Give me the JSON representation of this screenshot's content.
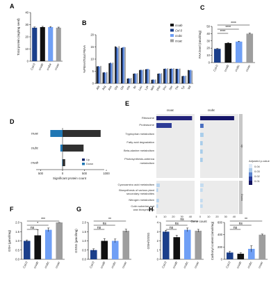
{
  "colors": {
    "col0": "#1b3f8b",
    "cruab": "#111111",
    "cruba": "#6f9ff5",
    "cruac": "#9e9e9e",
    "up": "#1a2a6c",
    "down": "#1f77b4",
    "dark": "#303030"
  },
  "panels": {
    "A": {
      "letter": "A",
      "ylabel": "Total protein (mg/mg seed)",
      "ylim": [
        0,
        40
      ],
      "yticks": [
        "0",
        "10",
        "20",
        "30",
        "40"
      ],
      "categories": [
        "Col-0",
        "cruab",
        "cruba",
        "cruac"
      ],
      "values": [
        27.5,
        28,
        28,
        27.5
      ],
      "errors": [
        0.6,
        0.6,
        0.5,
        0.5
      ]
    },
    "B": {
      "letter": "B",
      "ylabel": "%PBAA/Total PBAA",
      "ylim": [
        0,
        20
      ],
      "yticks": [
        "0",
        "5",
        "10",
        "15",
        "20"
      ],
      "categories": [
        "Ala",
        "Arg",
        "Asx",
        "Gly",
        "Glx",
        "His",
        "Ile",
        "Leu",
        "Lys",
        "Met",
        "Phe",
        "Pro",
        "Ser",
        "Thr",
        "Tyr",
        "Val"
      ],
      "series": [
        {
          "name": "cruab",
          "values": [
            7.0,
            4.5,
            8.3,
            15.2,
            14.6,
            2.0,
            4.0,
            5.5,
            5.8,
            1.5,
            4.0,
            6.0,
            6.0,
            6.0,
            3.0,
            5.5
          ]
        },
        {
          "name": "Col-0",
          "values": [
            7.1,
            4.6,
            8.5,
            15.0,
            14.8,
            2.1,
            4.1,
            5.6,
            5.9,
            1.6,
            4.1,
            6.1,
            6.1,
            6.0,
            3.1,
            5.4
          ]
        },
        {
          "name": "crubc",
          "values": [
            6.9,
            4.4,
            8.2,
            14.5,
            15.0,
            2.0,
            3.9,
            5.4,
            6.0,
            1.5,
            4.0,
            5.9,
            6.0,
            5.9,
            3.0,
            5.6
          ]
        },
        {
          "name": "cruac",
          "values": [
            7.2,
            4.7,
            8.6,
            15.3,
            14.9,
            2.2,
            4.2,
            5.7,
            5.7,
            1.6,
            4.2,
            6.2,
            6.2,
            6.1,
            3.2,
            5.3
          ]
        }
      ]
    },
    "C": {
      "letter": "C",
      "ylabel": "FAA level (nmol/mg)",
      "ylim": [
        0,
        50
      ],
      "yticks": [
        "0",
        "10",
        "20",
        "30",
        "40",
        "50"
      ],
      "categories": [
        "Col-0",
        "cruab",
        "crubc",
        "cruac"
      ],
      "values": [
        19,
        27,
        29,
        40
      ],
      "errors": [
        0.5,
        0.7,
        0.6,
        0.8
      ],
      "sig": [
        "****",
        "****",
        "****"
      ]
    },
    "D": {
      "letter": "D",
      "xlabel": "Significant protein count",
      "xticks": [
        "500",
        "0",
        "500",
        "1000"
      ],
      "categories": [
        "cruac",
        "crubc",
        "cruab"
      ],
      "up": [
        870,
        480,
        60
      ],
      "down": [
        280,
        50,
        10
      ],
      "legend": [
        "Up",
        "Down"
      ]
    },
    "E": {
      "letter": "E",
      "titles": [
        "cruac",
        "crubc"
      ],
      "side_labels": [
        "Up",
        "Down"
      ],
      "xlabel": "Gene count",
      "xticks": [
        "0",
        "10",
        "20",
        "30",
        "40"
      ],
      "terms_up": [
        "Ribosome",
        "Proteasome",
        "Tryptophan metabolism",
        "Fatty acid degradation",
        "Beta-alanine metabolism",
        "Photosynthesis-antenna",
        "metabolism"
      ],
      "terms_down": [
        "Cyanoamino acid metabolism",
        "Biosynthesis of various plant",
        "secondary metabolites",
        "Nitrogen metabolism",
        "Cutin suberine and",
        "wax biosynthesis"
      ],
      "legend_title": "Adjusted p-value",
      "legend_ticks": [
        "0.04",
        "0.03",
        "0.02",
        "0.01"
      ],
      "cruac_counts": [
        42,
        18,
        0,
        0,
        0,
        0,
        4,
        2,
        3,
        2
      ],
      "crubc_counts": [
        40,
        4,
        4,
        3,
        3,
        3,
        4,
        3,
        3,
        3
      ]
    },
    "F": {
      "letter": "F",
      "ylabel": "GSH (µmol/mg)",
      "ylim": [
        0,
        2.0
      ],
      "yticks": [
        "0.0",
        "0.5",
        "1.0",
        "1.5",
        "2.0"
      ],
      "categories": [
        "Col-0",
        "cruab",
        "crubc",
        "cruac"
      ],
      "values": [
        1.0,
        1.3,
        1.6,
        2.2
      ],
      "errors": [
        0.05,
        0.3,
        0.1,
        0.08
      ],
      "sig": [
        "***",
        "*",
        "ns"
      ]
    },
    "G": {
      "letter": "G",
      "ylabel": "GSSG (µmol/mg)",
      "ylim": [
        0,
        2.0
      ],
      "yticks": [
        "0.0",
        "0.5",
        "1.0",
        "1.5",
        "2.0"
      ],
      "categories": [
        "Col-0",
        "cruab",
        "crubc",
        "cruac"
      ],
      "values": [
        0.5,
        1.0,
        1.0,
        1.55
      ],
      "errors": [
        0.07,
        0.12,
        0.1,
        0.08
      ],
      "sig": [
        "**",
        "ns",
        "ns"
      ]
    },
    "H": {
      "letter": "H",
      "ylabel": "GSH/GSSG",
      "ylim": [
        0,
        4
      ],
      "yticks": [
        "0",
        "1",
        "2",
        "3",
        "4"
      ],
      "categories": [
        "Col-0",
        "cruab",
        "crubc",
        "cruac"
      ],
      "values": [
        3.0,
        2.4,
        3.2,
        3.1
      ],
      "errors": [
        0.15,
        0.2,
        0.2,
        0.15
      ],
      "sig": [
        "ns",
        "ns",
        "ns"
      ]
    },
    "I": {
      "letter": "I",
      "ylabel": "Carbonyl content (nmol/mg)",
      "ylim": [
        0,
        600
      ],
      "yticks": [
        "0",
        "200",
        "400",
        "600"
      ],
      "categories": [
        "Col-0",
        "cruab",
        "crubc",
        "cruac"
      ],
      "values": [
        110,
        90,
        170,
        400
      ],
      "errors": [
        20,
        15,
        50,
        10
      ],
      "sig": [
        "**",
        "ns",
        "ns"
      ]
    }
  }
}
